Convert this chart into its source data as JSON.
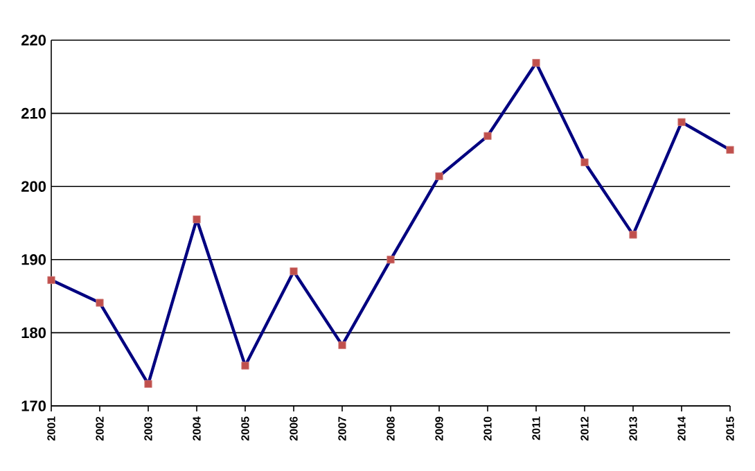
{
  "chart_data": {
    "type": "line",
    "categories": [
      "2001",
      "2002",
      "2003",
      "2004",
      "2005",
      "2006",
      "2007",
      "2008",
      "2009",
      "2010",
      "2011",
      "2012",
      "2013",
      "2014",
      "2015"
    ],
    "series": [
      {
        "color": "#000080",
        "values": [
          187.2,
          184.1,
          173.0,
          195.5,
          175.5,
          188.4,
          178.3,
          190.0,
          201.4,
          206.9,
          216.9,
          203.3,
          193.4,
          208.8,
          205.0
        ]
      }
    ],
    "ylim": [
      170,
      220
    ],
    "yticks": [
      170,
      180,
      190,
      200,
      210,
      220
    ],
    "grid": "y",
    "marker": "square",
    "line_style": "solid"
  }
}
